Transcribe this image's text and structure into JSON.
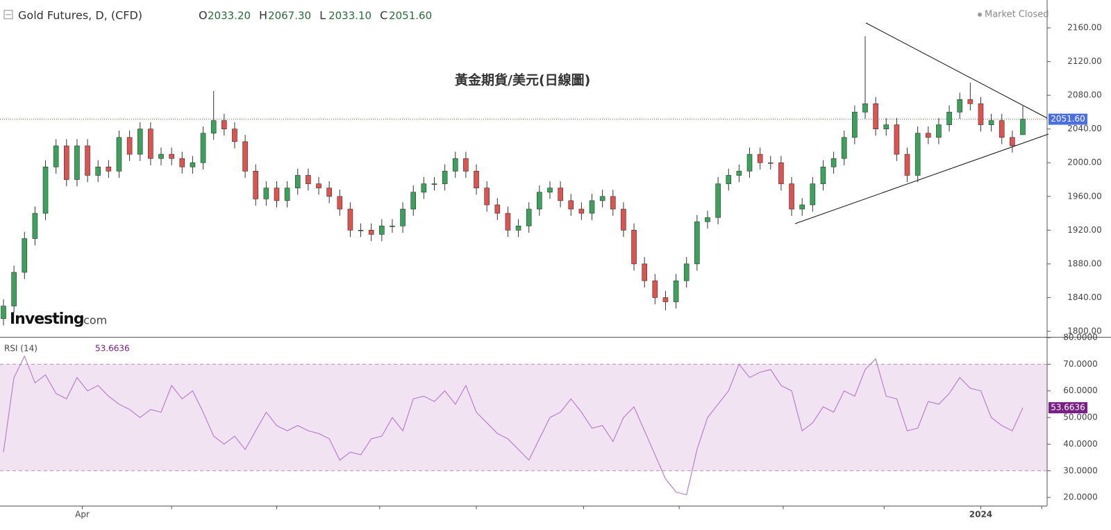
{
  "header": {
    "symbol": "Gold Futures, D, (CFD)",
    "status": "Market Closed",
    "logo": "Investing",
    "logo_suffix": ".com"
  },
  "chart_data": [
    {
      "type": "candlestick",
      "title": "黃金期貨/美元(日線圖)",
      "ohlc_labels": [
        "O",
        "H",
        "L",
        "C"
      ],
      "value_labels": {
        "open": "2033.20",
        "high": "2067.30",
        "low": "2033.10",
        "close": "2051.60"
      },
      "up_color": "#3aa35b",
      "down_color": "#e0524f",
      "last_price_color": "#4a6fe3",
      "open": [
        1815,
        1830,
        1870,
        1910,
        1940,
        1995,
        2020,
        1980,
        2020,
        1985,
        1995,
        1990,
        2030,
        2010,
        2040,
        2005,
        2010,
        2005,
        1995,
        2000,
        2035,
        2050,
        2040,
        2025,
        1990,
        1957,
        1970,
        1955,
        1970,
        1985,
        1975,
        1970,
        1960,
        1945,
        1920,
        1920,
        1915,
        1925,
        1925,
        1945,
        1965,
        1975,
        1975,
        1990,
        2005,
        1990,
        1970,
        1950,
        1940,
        1920,
        1925,
        1945,
        1965,
        1970,
        1955,
        1945,
        1940,
        1955,
        1960,
        1945,
        1920,
        1880,
        1860,
        1840,
        1835,
        1860,
        1880,
        1930,
        1935,
        1975,
        1985,
        1990,
        2010,
        2000,
        2000,
        1975,
        1945,
        1950,
        1975,
        1995,
        2005,
        2030,
        2060,
        2070,
        2040,
        2045,
        2010,
        1985,
        2035,
        2030,
        2045,
        2060,
        2075,
        2070,
        2045,
        2050,
        2030,
        2033.2
      ],
      "high": [
        1838,
        1878,
        1918,
        1948,
        2003,
        2028,
        2028,
        2028,
        2028,
        2003,
        2003,
        2038,
        2038,
        2048,
        2048,
        2018,
        2018,
        2013,
        2008,
        2043,
        2085,
        2058,
        2048,
        2033,
        1998,
        1978,
        1978,
        1978,
        1993,
        1993,
        1983,
        1978,
        1968,
        1953,
        1928,
        1928,
        1933,
        1933,
        1953,
        1973,
        1983,
        1983,
        1998,
        2013,
        2013,
        1998,
        1978,
        1958,
        1948,
        1933,
        1953,
        1973,
        1978,
        1978,
        1963,
        1953,
        1963,
        1968,
        1968,
        1953,
        1928,
        1888,
        1868,
        1848,
        1868,
        1888,
        1938,
        1943,
        1983,
        1993,
        1998,
        2018,
        2018,
        2008,
        2008,
        1983,
        1958,
        1983,
        2003,
        2013,
        2038,
        2068,
        2150,
        2078,
        2053,
        2053,
        2018,
        2043,
        2043,
        2053,
        2068,
        2083,
        2095,
        2078,
        2058,
        2058,
        2038,
        2067.3
      ],
      "low": [
        1807,
        1822,
        1862,
        1902,
        1932,
        1987,
        1972,
        1972,
        1977,
        1977,
        1982,
        1982,
        2002,
        2002,
        1997,
        1997,
        1997,
        1987,
        1987,
        1992,
        2027,
        2032,
        2017,
        1982,
        1949,
        1949,
        1947,
        1947,
        1962,
        1967,
        1962,
        1952,
        1937,
        1912,
        1912,
        1907,
        1907,
        1917,
        1917,
        1937,
        1957,
        1967,
        1967,
        1982,
        1982,
        1962,
        1942,
        1932,
        1912,
        1912,
        1917,
        1937,
        1957,
        1947,
        1937,
        1932,
        1932,
        1947,
        1937,
        1912,
        1872,
        1852,
        1832,
        1825,
        1827,
        1852,
        1872,
        1922,
        1927,
        1967,
        1977,
        1982,
        1992,
        1992,
        1967,
        1937,
        1937,
        1942,
        1967,
        1987,
        1997,
        2022,
        2052,
        2032,
        2032,
        2002,
        1977,
        1977,
        2022,
        2022,
        2037,
        2052,
        2062,
        2037,
        2037,
        2022,
        2012,
        2033.1
      ],
      "close": [
        1830,
        1870,
        1910,
        1940,
        1995,
        2020,
        1980,
        2020,
        1985,
        1995,
        1990,
        2030,
        2010,
        2040,
        2005,
        2010,
        2005,
        1995,
        2000,
        2035,
        2050,
        2040,
        2025,
        1990,
        1957,
        1970,
        1955,
        1970,
        1985,
        1975,
        1970,
        1960,
        1945,
        1920,
        1920,
        1915,
        1925,
        1925,
        1945,
        1965,
        1975,
        1975,
        1990,
        2005,
        1990,
        1970,
        1950,
        1940,
        1920,
        1925,
        1945,
        1965,
        1970,
        1955,
        1945,
        1940,
        1955,
        1960,
        1945,
        1920,
        1880,
        1860,
        1840,
        1835,
        1860,
        1880,
        1930,
        1935,
        1975,
        1985,
        1990,
        2010,
        2000,
        2000,
        1975,
        1945,
        1950,
        1975,
        1995,
        2005,
        2030,
        2060,
        2070,
        2040,
        2045,
        2010,
        1985,
        2035,
        2030,
        2045,
        2060,
        2075,
        2070,
        2045,
        2050,
        2030,
        2020,
        2051.6
      ],
      "ylim": [
        1793.4,
        2193
      ],
      "yticks": [
        {
          "value": 1800,
          "label": "1800.00"
        },
        {
          "value": 1840,
          "label": "1840.00"
        },
        {
          "value": 1880,
          "label": "1880.00"
        },
        {
          "value": 1920,
          "label": "1920.00"
        },
        {
          "value": 1960,
          "label": "1960.00"
        },
        {
          "value": 2000,
          "label": "2000.00"
        },
        {
          "value": 2040,
          "label": "2040.00"
        },
        {
          "value": 2080,
          "label": "2080.00"
        },
        {
          "value": 2120,
          "label": "2120.00"
        },
        {
          "value": 2160,
          "label": "2160.00"
        }
      ],
      "xticks": [
        {
          "value": 7.5,
          "label": "Apr"
        },
        {
          "value": 16,
          "label": null
        },
        {
          "value": 26,
          "label": null
        },
        {
          "value": 35.8,
          "label": null
        },
        {
          "value": 45,
          "label": null
        },
        {
          "value": 55.2,
          "label": null
        },
        {
          "value": 64.3,
          "label": null
        },
        {
          "value": 74.2,
          "label": null
        },
        {
          "value": 83.8,
          "label": null
        },
        {
          "value": 93,
          "label": "2024"
        },
        {
          "value": 98.8,
          "label": null
        }
      ]
    },
    {
      "type": "line",
      "series": [
        {
          "name": "RSI (14)",
          "color": "#b97fcf",
          "values": [
            37,
            65,
            73,
            63,
            66,
            59,
            57,
            65,
            60,
            62,
            58,
            55,
            53,
            50,
            53,
            52,
            62,
            57,
            60,
            52,
            43,
            40,
            43,
            38,
            45,
            52,
            47,
            45,
            47,
            45,
            44,
            42,
            34,
            37,
            36,
            42,
            43,
            50,
            45,
            57,
            58,
            56,
            60,
            55,
            62,
            52,
            48,
            44,
            42,
            38,
            34,
            42,
            50,
            52,
            57,
            52,
            46,
            47,
            41,
            50,
            54,
            45,
            36,
            27,
            22,
            21,
            38,
            50,
            55,
            60,
            70,
            65,
            67,
            68,
            62,
            60,
            45,
            48,
            54,
            52,
            60,
            58,
            68,
            72,
            58,
            57,
            45,
            46,
            56,
            55,
            59,
            65,
            61,
            60,
            50,
            47,
            45,
            53.6636
          ]
        }
      ],
      "band": [
        30,
        70
      ],
      "band_color": "#f1e3f2",
      "tag_color": "#7a1f86",
      "ylim": [
        16.9,
        80
      ],
      "yticks": [
        {
          "value": 20,
          "label": "20.0000"
        },
        {
          "value": 30,
          "label": "30.0000"
        },
        {
          "value": 40,
          "label": "40.0000"
        },
        {
          "value": 50,
          "label": "50.0000"
        },
        {
          "value": 60,
          "label": "60.0000"
        },
        {
          "value": 70,
          "label": "70.0000"
        },
        {
          "value": 80,
          "label": "80.0000"
        }
      ]
    }
  ]
}
